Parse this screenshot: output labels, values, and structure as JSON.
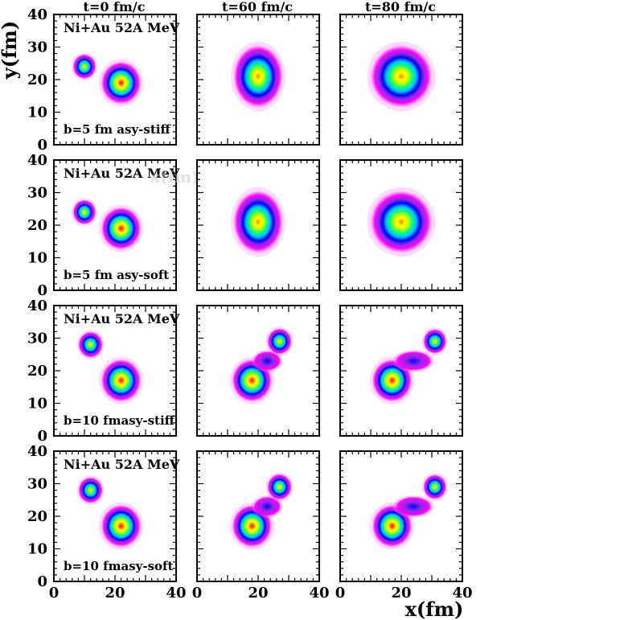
{
  "chart_data": {
    "type": "heatmap",
    "description_free": true,
    "column_titles": [
      "t=0 fm/c",
      "t=60 fm/c",
      "t=80 fm/c"
    ],
    "xlabel": "x(fm)",
    "ylabel": "y(fm)",
    "xlim": [
      0,
      40
    ],
    "ylim": [
      0,
      40
    ],
    "xticks": [
      0,
      20,
      40
    ],
    "yticks": [
      0,
      10,
      20,
      30,
      40
    ],
    "colormap": [
      "#ff00ff",
      "#8a2be2",
      "#0000ff",
      "#00bfff",
      "#00ff80",
      "#c0ff00",
      "#ffff00",
      "#ff8000",
      "#ff0000"
    ],
    "rows": [
      {
        "reaction": "Ni+Au 52A MeV",
        "condition": "b=5 fm asy-stiff",
        "watermark": "",
        "panels": [
          {
            "time": "t=0 fm/c",
            "blobs": [
              {
                "part": "projectile",
                "cx": 10,
                "cy": 24,
                "rx": 3.8,
                "ry": 3.8,
                "peak": 0.75
              },
              {
                "part": "target",
                "cx": 22,
                "cy": 19,
                "rx": 6.5,
                "ry": 6.5,
                "peak": 1.0
              }
            ]
          },
          {
            "time": "t=60 fm/c",
            "blobs": [
              {
                "part": "fused",
                "cx": 20,
                "cy": 21,
                "rx": 8,
                "ry": 9.5,
                "peak": 0.9
              }
            ]
          },
          {
            "time": "t=80 fm/c",
            "blobs": [
              {
                "part": "fused",
                "cx": 20,
                "cy": 21,
                "rx": 10,
                "ry": 9.5,
                "peak": 0.85
              }
            ]
          }
        ]
      },
      {
        "reaction": "Ni+Au 52A MeV",
        "condition": "b=5 fm asy-soft",
        "watermark": "x(fm)",
        "panels": [
          {
            "time": "t=0 fm/c",
            "blobs": [
              {
                "part": "projectile",
                "cx": 10,
                "cy": 24,
                "rx": 3.8,
                "ry": 3.8,
                "peak": 0.75
              },
              {
                "part": "target",
                "cx": 22,
                "cy": 19,
                "rx": 6.5,
                "ry": 6.5,
                "peak": 1.0
              }
            ]
          },
          {
            "time": "t=60 fm/c",
            "blobs": [
              {
                "part": "fused",
                "cx": 20,
                "cy": 21,
                "rx": 8,
                "ry": 9.5,
                "peak": 0.9
              }
            ]
          },
          {
            "time": "t=80 fm/c",
            "blobs": [
              {
                "part": "fused",
                "cx": 20,
                "cy": 21,
                "rx": 10,
                "ry": 9.5,
                "peak": 0.85
              }
            ]
          }
        ]
      },
      {
        "reaction": "Ni+Au 52A MeV",
        "condition": "b=10 fmasy-stiff",
        "watermark": "",
        "panels": [
          {
            "time": "t=0 fm/c",
            "blobs": [
              {
                "part": "projectile",
                "cx": 12,
                "cy": 28,
                "rx": 4,
                "ry": 4,
                "peak": 0.75
              },
              {
                "part": "target",
                "cx": 22,
                "cy": 17,
                "rx": 6.5,
                "ry": 6.5,
                "peak": 1.0
              }
            ]
          },
          {
            "time": "t=60 fm/c",
            "blobs": [
              {
                "part": "target",
                "cx": 18,
                "cy": 17,
                "rx": 6.5,
                "ry": 6.5,
                "peak": 0.95
              },
              {
                "part": "neck",
                "cx": 23,
                "cy": 23,
                "rx": 4.5,
                "ry": 3,
                "peak": 0.25
              },
              {
                "part": "projectile",
                "cx": 27,
                "cy": 29,
                "rx": 4,
                "ry": 4,
                "peak": 0.7
              }
            ]
          },
          {
            "time": "t=80 fm/c",
            "blobs": [
              {
                "part": "target",
                "cx": 17,
                "cy": 17,
                "rx": 6.5,
                "ry": 6.5,
                "peak": 0.95
              },
              {
                "part": "neck",
                "cx": 24,
                "cy": 23,
                "rx": 6,
                "ry": 3,
                "peak": 0.18
              },
              {
                "part": "projectile",
                "cx": 31,
                "cy": 29,
                "rx": 3.8,
                "ry": 3.8,
                "peak": 0.7
              }
            ]
          }
        ]
      },
      {
        "reaction": "Ni+Au 52A MeV",
        "condition": "b=10 fmasy-soft",
        "watermark": "",
        "panels": [
          {
            "time": "t=0 fm/c",
            "blobs": [
              {
                "part": "projectile",
                "cx": 12,
                "cy": 28,
                "rx": 4,
                "ry": 4,
                "peak": 0.75
              },
              {
                "part": "target",
                "cx": 22,
                "cy": 17,
                "rx": 6.5,
                "ry": 6.5,
                "peak": 1.0
              }
            ]
          },
          {
            "time": "t=60 fm/c",
            "blobs": [
              {
                "part": "target",
                "cx": 18,
                "cy": 17,
                "rx": 6.5,
                "ry": 6.5,
                "peak": 0.95
              },
              {
                "part": "neck",
                "cx": 23,
                "cy": 23,
                "rx": 4.5,
                "ry": 3,
                "peak": 0.25
              },
              {
                "part": "projectile",
                "cx": 27,
                "cy": 29,
                "rx": 4,
                "ry": 4,
                "peak": 0.7
              }
            ]
          },
          {
            "time": "t=80 fm/c",
            "blobs": [
              {
                "part": "target",
                "cx": 17,
                "cy": 17,
                "rx": 6.5,
                "ry": 6.5,
                "peak": 0.95
              },
              {
                "part": "neck",
                "cx": 24,
                "cy": 23,
                "rx": 6,
                "ry": 3,
                "peak": 0.18
              },
              {
                "part": "projectile",
                "cx": 31,
                "cy": 29,
                "rx": 3.8,
                "ry": 3.8,
                "peak": 0.7
              }
            ]
          }
        ]
      }
    ]
  }
}
